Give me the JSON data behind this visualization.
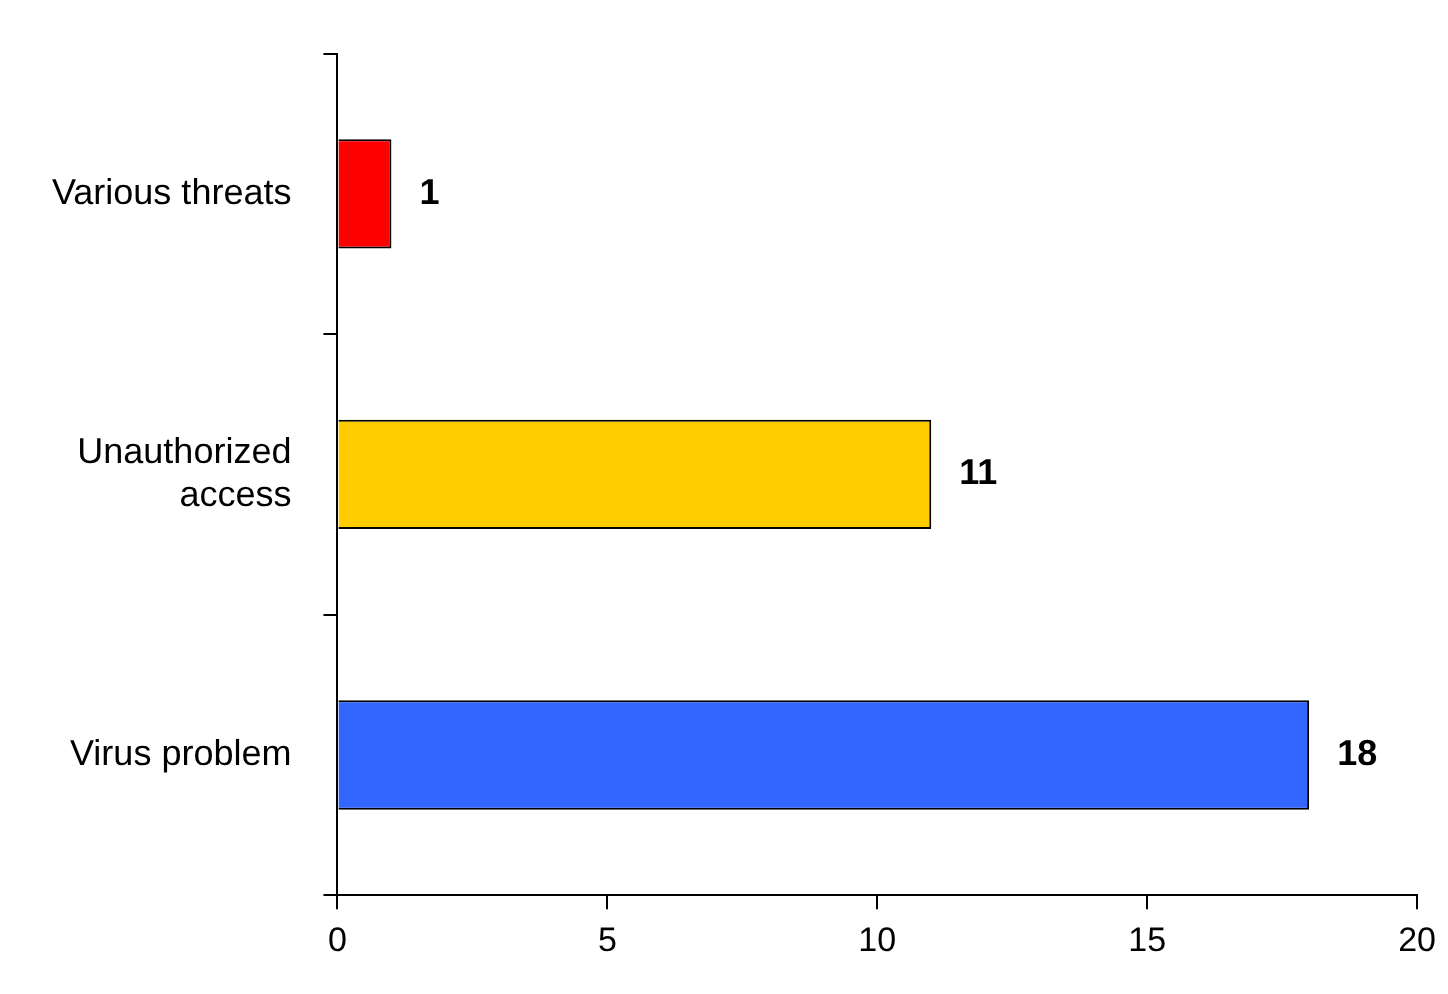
{
  "chart_data": {
    "type": "bar",
    "orientation": "horizontal",
    "categories": [
      "Various threats",
      "Unauthorized access",
      "Virus problem"
    ],
    "values": [
      1,
      11,
      18
    ],
    "colors": [
      "#ff0000",
      "#ffcc00",
      "#3366ff"
    ],
    "xlim": [
      0,
      20
    ],
    "xticks": [
      0,
      5,
      10,
      15,
      20
    ],
    "grid": false,
    "legend": false,
    "data_labels": true
  }
}
